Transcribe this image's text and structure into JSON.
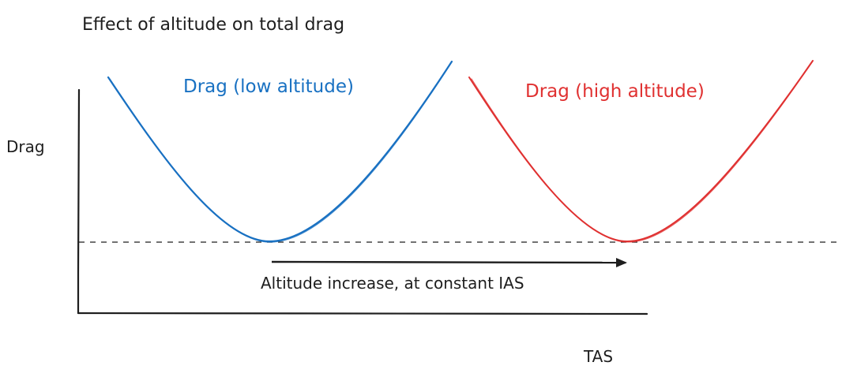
{
  "title": "Effect of altitude on total drag",
  "y_axis_label": "Drag",
  "x_axis_label": "TAS",
  "curves": [
    {
      "label": "Drag (low altitude)",
      "color": "#1971c2"
    },
    {
      "label": "Drag (high altitude)",
      "color": "#e03131"
    }
  ],
  "arrow_label": "Altitude increase, at constant IAS",
  "ink_color": "#1e1e1e"
}
